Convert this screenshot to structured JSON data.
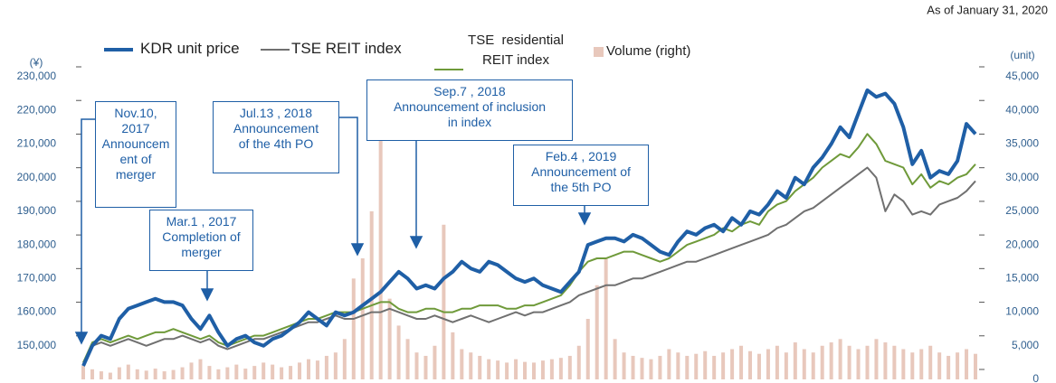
{
  "chart_data": {
    "type": "line",
    "subtitle": "As of January 31, 2020",
    "y_label": "(¥)",
    "y2_label": "(unit)",
    "categories": [
      null,
      null,
      null,
      null,
      null,
      null,
      null,
      null,
      null,
      null,
      null,
      null,
      null,
      null,
      null,
      null,
      null,
      null,
      null,
      null,
      null,
      null,
      null,
      null,
      null,
      null,
      null,
      null,
      null,
      null,
      null,
      null,
      null,
      null,
      null,
      null,
      null,
      null,
      null,
      null,
      null,
      null,
      null,
      null,
      null,
      null,
      null,
      null,
      null,
      null,
      null,
      null,
      null,
      null,
      null,
      null,
      null,
      null,
      null,
      null,
      null,
      null,
      null,
      null,
      null,
      null,
      null,
      null,
      null,
      null,
      null,
      null,
      null,
      null,
      null,
      null,
      null,
      null,
      null,
      null,
      null,
      null,
      null,
      null,
      null,
      null,
      null,
      null,
      null,
      null,
      null,
      null,
      null,
      null,
      null,
      null,
      null,
      null,
      null,
      null
    ],
    "ylim": [
      140000,
      230000
    ],
    "yticks": [
      {
        "value": 150000,
        "label": "150,000"
      },
      {
        "value": 160000,
        "label": "160,000"
      },
      {
        "value": 170000,
        "label": "170,000"
      },
      {
        "value": 180000,
        "label": "180,000"
      },
      {
        "value": 190000,
        "label": "190,000"
      },
      {
        "value": 200000,
        "label": "200,000"
      },
      {
        "value": 210000,
        "label": "210,000"
      },
      {
        "value": 220000,
        "label": "220,000"
      },
      {
        "value": 230000,
        "label": "230,000"
      }
    ],
    "y2lim": [
      0,
      45000
    ],
    "y2ticks": [
      0,
      {
        "value": 5000,
        "label": "5,000"
      },
      {
        "value": 10000,
        "label": "10,000"
      },
      {
        "value": 15000,
        "label": "15,000"
      },
      {
        "value": 20000,
        "label": "20,000"
      },
      {
        "value": 25000,
        "label": "25,000"
      },
      {
        "value": 30000,
        "label": "30,000"
      },
      {
        "value": 35000,
        "label": "35,000"
      },
      {
        "value": 40000,
        "label": "40,000"
      },
      {
        "value": 45000,
        "label": "45,000"
      }
    ],
    "series": [
      {
        "name": "Volume (right)",
        "kind": "bar",
        "axis": "y2",
        "color": "#e8c8bc",
        "values": [
          2000,
          1500,
          1200,
          1000,
          1800,
          2200,
          1500,
          1300,
          1600,
          1200,
          1400,
          1800,
          2500,
          3000,
          2000,
          1500,
          1800,
          2200,
          1600,
          2000,
          2500,
          2200,
          1800,
          2000,
          2500,
          3000,
          2800,
          3500,
          4000,
          6000,
          15000,
          18000,
          25000,
          37000,
          12000,
          8000,
          6000,
          4000,
          3500,
          5000,
          23000,
          7000,
          4500,
          4000,
          3500,
          3000,
          2800,
          2500,
          3000,
          2600,
          2500,
          2800,
          3000,
          3200,
          3500,
          5000,
          9000,
          14000,
          18000,
          6000,
          4000,
          3500,
          3200,
          3000,
          3500,
          4500,
          4000,
          3500,
          3800,
          4200,
          3500,
          4000,
          4500,
          5000,
          4200,
          3800,
          4500,
          5000,
          4000,
          5500,
          4500,
          4000,
          5000,
          5500,
          6000,
          5000,
          4500,
          5000,
          6000,
          5500,
          5000,
          4500,
          4000,
          4500,
          5000,
          4000,
          3500,
          4000,
          4500,
          3800
        ]
      },
      {
        "name": "TSE REIT index",
        "color": "#707070",
        "width": 2,
        "values": [
          145000,
          150000,
          151000,
          150000,
          151000,
          152000,
          151000,
          150000,
          151000,
          152000,
          152000,
          153000,
          152000,
          151000,
          152000,
          150000,
          149000,
          150000,
          151000,
          152000,
          152000,
          153000,
          154000,
          155000,
          156000,
          157000,
          157000,
          158000,
          159000,
          158000,
          158000,
          159000,
          160000,
          160000,
          161000,
          160000,
          159000,
          158000,
          158000,
          159000,
          158000,
          157000,
          158000,
          159000,
          158000,
          157000,
          158000,
          159000,
          160000,
          159000,
          160000,
          160000,
          161000,
          162000,
          163000,
          165000,
          166000,
          167000,
          168000,
          168000,
          169000,
          170000,
          170000,
          171000,
          172000,
          173000,
          174000,
          175000,
          175000,
          176000,
          177000,
          178000,
          179000,
          180000,
          181000,
          182000,
          183000,
          185000,
          186000,
          188000,
          190000,
          191000,
          193000,
          195000,
          197000,
          199000,
          201000,
          203000,
          200000,
          190000,
          195000,
          193000,
          189000,
          190000,
          189000,
          192000,
          193000,
          194000,
          196000,
          199000
        ]
      },
      {
        "name": "TSE  residential REIT index",
        "color": "#6f9a3a",
        "width": 2,
        "values": [
          145000,
          151000,
          152000,
          151000,
          152000,
          153000,
          152000,
          153000,
          154000,
          154000,
          155000,
          154000,
          153000,
          152000,
          153000,
          151000,
          150000,
          151000,
          152000,
          153000,
          153000,
          154000,
          155000,
          156000,
          157000,
          158000,
          158000,
          159000,
          160000,
          160000,
          160000,
          161000,
          162000,
          163000,
          163000,
          161000,
          160000,
          160000,
          161000,
          161000,
          160000,
          160000,
          161000,
          161000,
          162000,
          162000,
          162000,
          161000,
          161000,
          162000,
          162000,
          163000,
          164000,
          165000,
          168000,
          172000,
          175000,
          176000,
          176000,
          177000,
          178000,
          178000,
          177000,
          176000,
          175000,
          176000,
          178000,
          180000,
          181000,
          182000,
          183000,
          185000,
          184000,
          186000,
          187000,
          186000,
          190000,
          192000,
          193000,
          196000,
          198000,
          200000,
          203000,
          205000,
          207000,
          206000,
          209000,
          213000,
          210000,
          205000,
          204000,
          203000,
          198000,
          201000,
          197000,
          199000,
          198000,
          200000,
          201000,
          204000
        ]
      },
      {
        "name": "KDR unit price",
        "color": "#1f5fa6",
        "width": 4,
        "values": [
          144000,
          150000,
          153000,
          152000,
          158000,
          161000,
          162000,
          163000,
          164000,
          163000,
          163000,
          162000,
          158000,
          155000,
          159000,
          154000,
          150000,
          152000,
          153000,
          151000,
          150000,
          152000,
          153000,
          155000,
          157000,
          160000,
          158000,
          156000,
          160000,
          159000,
          160000,
          162000,
          164000,
          166000,
          169000,
          172000,
          170000,
          167000,
          168000,
          167000,
          170000,
          172000,
          175000,
          173000,
          172000,
          175000,
          174000,
          172000,
          170000,
          169000,
          170000,
          168000,
          167000,
          166000,
          169000,
          172000,
          180000,
          181000,
          182000,
          182000,
          181000,
          183000,
          182000,
          180000,
          178000,
          177000,
          181000,
          184000,
          183000,
          185000,
          186000,
          184000,
          188000,
          186000,
          190000,
          189000,
          192000,
          196000,
          194000,
          200000,
          198000,
          203000,
          206000,
          210000,
          215000,
          212000,
          219000,
          226000,
          224000,
          225000,
          222000,
          215000,
          204000,
          208000,
          200000,
          202000,
          201000,
          205000,
          216000,
          213000
        ]
      }
    ],
    "annotations": [
      {
        "lines": [
          "Nov.10,",
          "2017",
          "Announcem",
          "ent of",
          "merger"
        ]
      },
      {
        "lines": [
          "Mar.1 , 2017",
          "Completion of",
          "merger"
        ]
      },
      {
        "lines": [
          "Jul.13 , 2018",
          "Announcement",
          "of the 4th PO"
        ]
      },
      {
        "lines": [
          "Sep.7 , 2018",
          "Announcement of inclusion",
          "in index"
        ]
      },
      {
        "lines": [
          "Feb.4 , 2019",
          "Announcement of",
          "the 5th PO"
        ]
      }
    ]
  }
}
